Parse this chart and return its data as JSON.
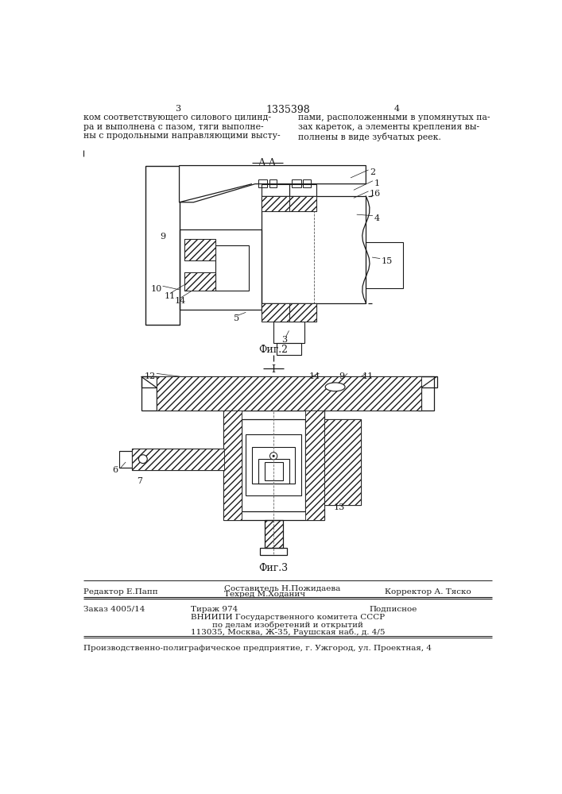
{
  "page_number_left": "3",
  "page_number_right": "4",
  "patent_number": "1335398",
  "text_left": "ком соответствующего силового цилинд-\nра и выполнена с пазом, тяги выполне-\nны с продольными направляющими высту-",
  "text_right": "пами, расположенными в упомянутых па-\nзах кареток, а элементы крепления вы-\nполнены в виде зубчатых реек.",
  "fig2_label": "Фиг.2",
  "fig3_label": "Фиг.3",
  "section_label_aa": "А-А",
  "section_label_i": "I",
  "editor_line": "Редактор Е.Папп",
  "composer_label": "Составитель Н.Пожидаева",
  "techred_label": "Техред М.Ходанич",
  "corrector_label": "Корректор А. Тяско",
  "order_line": "Заказ 4005/14",
  "tirazh_line": "Тираж 974",
  "podpisnoe_line": "Подписное",
  "vniip1": "ВНИИПИ Государственного комитета СССР",
  "vniip2": "по делам изобретений и открытий",
  "vniip3": "113035, Москва, Ж-35, Раушская наб., д. 4/5",
  "production": "Производственно-полиграфическое предприятие, г. Ужгород, ул. Проектная, 4",
  "lc": "#1a1a1a",
  "bg": "#ffffff",
  "hatch_color": "#333333"
}
